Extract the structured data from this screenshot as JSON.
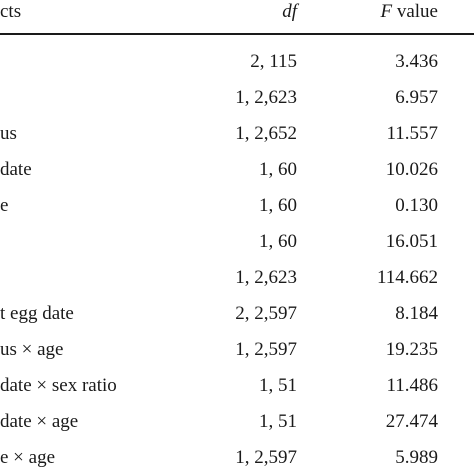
{
  "table": {
    "header": {
      "effects": "cts",
      "df": "df",
      "f_italic": "F",
      "f_rest": " value"
    },
    "rows": [
      {
        "effect": "",
        "df": "2, 115",
        "f": "3.436"
      },
      {
        "effect": "",
        "df": "1, 2,623",
        "f": "6.957"
      },
      {
        "effect": "us",
        "df": "1, 2,652",
        "f": "11.557"
      },
      {
        "effect": "date",
        "df": "1, 60",
        "f": "10.026"
      },
      {
        "effect": "e",
        "df": "1, 60",
        "f": "0.130"
      },
      {
        "effect": "",
        "df": "1, 60",
        "f": "16.051"
      },
      {
        "effect": "",
        "df": "1, 2,623",
        "f": "114.662"
      },
      {
        "effect": "t egg date",
        "df": "2, 2,597",
        "f": "8.184"
      },
      {
        "effect": "us × age",
        "df": "1, 2,597",
        "f": "19.235"
      },
      {
        "effect": "date × sex ratio",
        "df": "1, 51",
        "f": "11.486"
      },
      {
        "effect": "date × age",
        "df": "1, 51",
        "f": "27.474"
      },
      {
        "effect": "e × age",
        "df": "1, 2,597",
        "f": "5.989"
      }
    ]
  }
}
